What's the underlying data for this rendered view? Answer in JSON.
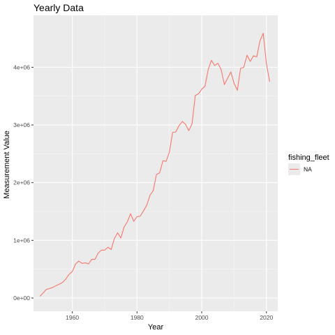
{
  "chart_data": {
    "type": "line",
    "title": "Yearly Data",
    "xlabel": "Year",
    "ylabel": "Measurement Value",
    "xlim": [
      1948,
      2023.5
    ],
    "ylim": [
      -230000,
      4900000
    ],
    "x_ticks": [
      1960,
      1980,
      2000,
      2020
    ],
    "x_tick_labels": [
      "1960",
      "1980",
      "2000",
      "2020"
    ],
    "y_ticks": [
      0,
      1000000,
      2000000,
      3000000,
      4000000
    ],
    "y_tick_labels": [
      "0e+00",
      "1e+06",
      "2e+06",
      "3e+06",
      "4e+06"
    ],
    "grid": true,
    "legend": {
      "title": "fishing_fleet",
      "position": "right",
      "entries": [
        "NA"
      ]
    },
    "series": [
      {
        "name": "NA",
        "color": "#F8766D",
        "x": [
          1950,
          1951,
          1952,
          1953,
          1954,
          1955,
          1956,
          1957,
          1958,
          1959,
          1960,
          1961,
          1962,
          1963,
          1964,
          1965,
          1966,
          1967,
          1968,
          1969,
          1970,
          1971,
          1972,
          1973,
          1974,
          1975,
          1976,
          1977,
          1978,
          1979,
          1980,
          1981,
          1982,
          1983,
          1984,
          1985,
          1986,
          1987,
          1988,
          1989,
          1990,
          1991,
          1992,
          1993,
          1994,
          1995,
          1996,
          1997,
          1998,
          1999,
          2000,
          2001,
          2002,
          2003,
          2004,
          2005,
          2006,
          2007,
          2008,
          2009,
          2010,
          2011,
          2012,
          2013,
          2014,
          2015,
          2016,
          2017,
          2018,
          2019,
          2020,
          2021
        ],
        "y": [
          30000,
          90000,
          150000,
          165000,
          185000,
          215000,
          240000,
          270000,
          330000,
          410000,
          460000,
          590000,
          640000,
          600000,
          610000,
          590000,
          670000,
          670000,
          780000,
          830000,
          830000,
          880000,
          840000,
          1030000,
          1130000,
          1040000,
          1230000,
          1320000,
          1460000,
          1330000,
          1410000,
          1420000,
          1510000,
          1610000,
          1780000,
          1860000,
          2140000,
          2170000,
          2380000,
          2370000,
          2530000,
          2870000,
          2880000,
          2990000,
          3060000,
          3010000,
          2900000,
          3020000,
          3510000,
          3540000,
          3620000,
          3670000,
          3960000,
          4120000,
          4030000,
          4070000,
          3960000,
          3700000,
          3810000,
          3920000,
          3720000,
          3600000,
          3980000,
          4000000,
          4210000,
          4100000,
          4200000,
          4180000,
          4460000,
          4590000,
          4060000,
          3750000
        ]
      }
    ]
  }
}
